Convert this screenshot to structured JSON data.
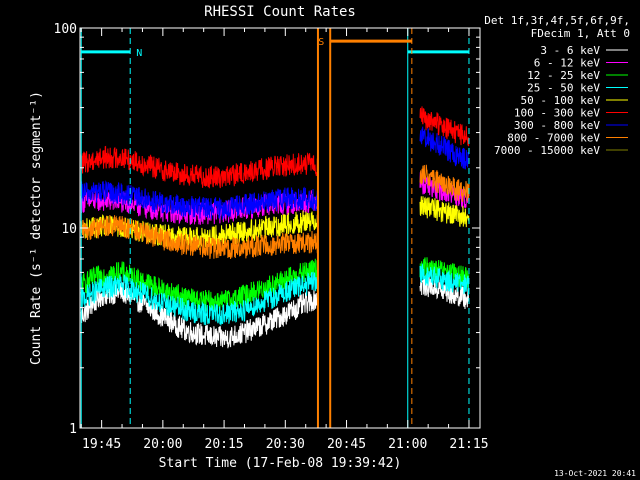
{
  "chart_data": {
    "type": "line",
    "title": "RHESSI Count Rates",
    "xlabel": "Start Time (17-Feb-08 19:39:42)",
    "ylabel": "Count Rate (s⁻¹ detector segment⁻¹)",
    "yscale": "log",
    "ylim": [
      1,
      100
    ],
    "xlim": [
      "19:39:42",
      "21:17:42"
    ],
    "x_ticks": [
      "19:45",
      "20:00",
      "20:15",
      "20:30",
      "20:45",
      "21:00",
      "21:15"
    ],
    "y_ticks": [
      "1",
      "10",
      "100"
    ],
    "legend_header": [
      "Det 1f,3f,4f,5f,6f,9f,",
      "FDecim 1, Att 0"
    ],
    "footer_date": "13-Oct-2021 20:41",
    "grid": false,
    "legend_position": "right",
    "series": [
      {
        "name": "3 - 6 keV",
        "color": "#ffffff",
        "segments": [
          {
            "x": [
              "19:40",
              "19:45",
              "19:50",
              "19:55",
              "20:00",
              "20:05",
              "20:10",
              "20:15",
              "20:20",
              "20:25",
              "20:30",
              "20:35",
              "20:38"
            ],
            "y": [
              3.6,
              4.6,
              4.8,
              4.2,
              3.6,
              3.1,
              2.9,
              2.8,
              3.0,
              3.3,
              3.7,
              4.2,
              4.5
            ]
          },
          {
            "x": [
              "21:03",
              "21:06",
              "21:09",
              "21:12",
              "21:15"
            ],
            "y": [
              5.2,
              5.1,
              4.8,
              4.6,
              4.4
            ]
          }
        ]
      },
      {
        "name": "6 - 12 keV",
        "color": "#ff00ff",
        "segments": [
          {
            "x": [
              "19:40",
              "19:45",
              "19:50",
              "19:55",
              "20:00",
              "20:05",
              "20:10",
              "20:15",
              "20:20",
              "20:25",
              "20:30",
              "20:35",
              "20:38"
            ],
            "y": [
              13.5,
              13.8,
              13.5,
              12.8,
              12.2,
              11.8,
              11.8,
              12.0,
              12.5,
              13.0,
              13.2,
              13.5,
              13.8
            ]
          },
          {
            "x": [
              "21:03",
              "21:06",
              "21:09",
              "21:12",
              "21:15"
            ],
            "y": [
              17.0,
              16.0,
              15.0,
              14.5,
              14.0
            ]
          }
        ]
      },
      {
        "name": "12 - 25 keV",
        "color": "#00ff00",
        "segments": [
          {
            "x": [
              "19:40",
              "19:45",
              "19:50",
              "19:55",
              "20:00",
              "20:05",
              "20:10",
              "20:15",
              "20:20",
              "20:25",
              "20:30",
              "20:35",
              "20:38"
            ],
            "y": [
              5.2,
              5.8,
              6.0,
              5.4,
              4.9,
              4.5,
              4.3,
              4.3,
              4.6,
              5.0,
              5.5,
              6.0,
              6.3
            ]
          },
          {
            "x": [
              "21:03",
              "21:06",
              "21:09",
              "21:12",
              "21:15"
            ],
            "y": [
              6.4,
              6.2,
              6.0,
              5.8,
              5.6
            ]
          }
        ]
      },
      {
        "name": "25 - 50 keV",
        "color": "#00ffff",
        "segments": [
          {
            "x": [
              "19:40",
              "19:45",
              "19:50",
              "19:55",
              "20:00",
              "20:05",
              "20:10",
              "20:15",
              "20:20",
              "20:25",
              "20:30",
              "20:35",
              "20:38"
            ],
            "y": [
              4.4,
              5.0,
              5.2,
              4.7,
              4.2,
              3.9,
              3.7,
              3.7,
              3.9,
              4.3,
              4.8,
              5.2,
              5.4
            ]
          },
          {
            "x": [
              "21:03",
              "21:06",
              "21:09",
              "21:12",
              "21:15"
            ],
            "y": [
              5.9,
              5.7,
              5.5,
              5.3,
              5.2
            ]
          }
        ]
      },
      {
        "name": "50 - 100 keV",
        "color": "#ffff00",
        "segments": [
          {
            "x": [
              "19:40",
              "19:45",
              "19:50",
              "19:55",
              "20:00",
              "20:05",
              "20:10",
              "20:15",
              "20:20",
              "20:25",
              "20:30",
              "20:35",
              "20:38"
            ],
            "y": [
              9.8,
              10.2,
              10.0,
              9.6,
              9.2,
              9.0,
              9.0,
              9.2,
              9.6,
              10.0,
              10.4,
              10.8,
              11.0
            ]
          },
          {
            "x": [
              "21:03",
              "21:06",
              "21:09",
              "21:12",
              "21:15"
            ],
            "y": [
              13.0,
              12.5,
              12.0,
              11.5,
              11.2
            ]
          }
        ]
      },
      {
        "name": "100 - 300 keV",
        "color": "#ff0000",
        "segments": [
          {
            "x": [
              "19:40",
              "19:45",
              "19:50",
              "19:55",
              "20:00",
              "20:05",
              "20:10",
              "20:15",
              "20:20",
              "20:25",
              "20:30",
              "20:35",
              "20:38"
            ],
            "y": [
              21.0,
              22.5,
              22.5,
              21.0,
              19.5,
              18.5,
              18.0,
              18.0,
              18.8,
              19.8,
              20.5,
              21.0,
              20.5
            ]
          },
          {
            "x": [
              "21:03",
              "21:06",
              "21:09",
              "21:12",
              "21:15"
            ],
            "y": [
              36.0,
              34.0,
              32.0,
              30.0,
              28.0
            ]
          }
        ]
      },
      {
        "name": "300 - 800 keV",
        "color": "#0000ff",
        "segments": [
          {
            "x": [
              "19:40",
              "19:45",
              "19:50",
              "19:55",
              "20:00",
              "20:05",
              "20:10",
              "20:15",
              "20:20",
              "20:25",
              "20:30",
              "20:35",
              "20:38"
            ],
            "y": [
              15.0,
              15.2,
              14.8,
              14.0,
              13.2,
              12.8,
              12.6,
              12.6,
              13.0,
              13.5,
              14.0,
              14.0,
              13.8
            ]
          },
          {
            "x": [
              "21:03",
              "21:06",
              "21:09",
              "21:12",
              "21:15"
            ],
            "y": [
              29.0,
              27.0,
              25.0,
              23.0,
              22.0
            ]
          }
        ]
      },
      {
        "name": "800 - 7000 keV",
        "color": "#ff8000",
        "segments": [
          {
            "x": [
              "19:40",
              "19:45",
              "19:50",
              "19:55",
              "20:00",
              "20:05",
              "20:10",
              "20:15",
              "20:20",
              "20:25",
              "20:30",
              "20:35",
              "20:38"
            ],
            "y": [
              9.6,
              10.2,
              10.2,
              9.5,
              8.8,
              8.3,
              8.0,
              7.9,
              8.0,
              8.2,
              8.4,
              8.5,
              8.5
            ]
          },
          {
            "x": [
              "21:03",
              "21:06",
              "21:09",
              "21:12",
              "21:15"
            ],
            "y": [
              19.0,
              17.5,
              16.5,
              15.5,
              15.0
            ]
          }
        ]
      },
      {
        "name": "7000 - 15000 keV",
        "color": "#808000",
        "segments": []
      }
    ],
    "cyan_bars": [
      {
        "x": [
          "19:40",
          "19:52"
        ],
        "y": 76
      },
      {
        "x": [
          "21:00",
          "21:15"
        ],
        "y": 76
      }
    ],
    "cyan_vlines": [
      "19:40",
      "21:00"
    ],
    "cyan_dashed_vlines": [
      "19:52",
      "21:15"
    ],
    "n_label": "N",
    "orange_bar": {
      "x": [
        "20:41",
        "21:01"
      ],
      "y": 86
    },
    "orange_vlines": [
      "20:38",
      "20:41"
    ],
    "orange_dashed_vlines": [
      "21:01"
    ],
    "s_label": "S"
  }
}
